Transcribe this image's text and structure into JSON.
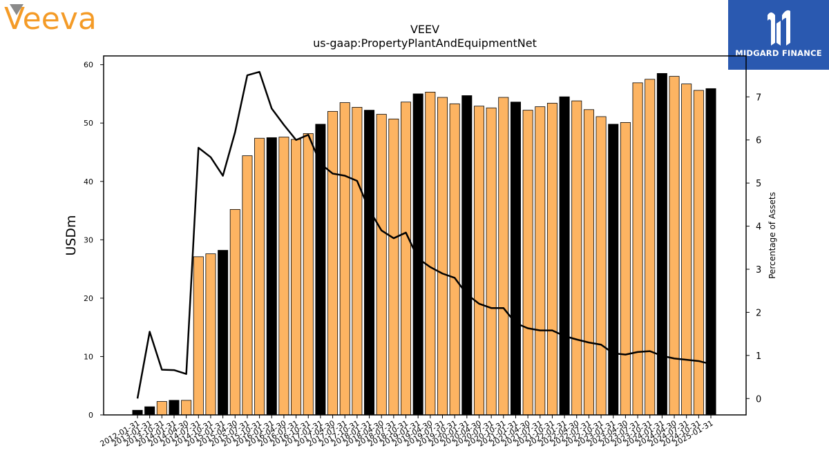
{
  "brand": {
    "left_logo_text": "Veeva",
    "left_logo_color": "#f49b27",
    "left_logo_accent": "#8a8a8a",
    "right_logo_text": "MIDGARD FINANCE",
    "right_logo_bg": "#2a59b0"
  },
  "chart_data": {
    "type": "bar",
    "title": "VEEV",
    "subtitle": "us-gaap:PropertyPlantAndEquipmentNet",
    "ylabel": "USDm",
    "y2label": "Percentage of Assets",
    "ylim": [
      0,
      61.5
    ],
    "y2lim": [
      -0.38,
      7.95
    ],
    "yticks": [
      0,
      10,
      20,
      30,
      40,
      50,
      60
    ],
    "y2ticks": [
      0,
      1,
      2,
      3,
      4,
      5,
      6,
      7
    ],
    "colors": {
      "bar_q4": "#000000",
      "bar_other": "#fdb462",
      "line": "#000000"
    },
    "categories": [
      "2012-01-31",
      "2013-01-31",
      "2013-10-31",
      "2014-01-31",
      "2014-04-30",
      "2014-07-31",
      "2014-10-31",
      "2015-01-31",
      "2015-04-30",
      "2015-07-31",
      "2015-10-31",
      "2016-01-31",
      "2016-04-30",
      "2016-07-31",
      "2016-10-31",
      "2017-01-31",
      "2017-04-30",
      "2017-07-31",
      "2017-10-31",
      "2018-01-31",
      "2018-04-30",
      "2018-07-31",
      "2018-10-31",
      "2019-01-31",
      "2019-04-30",
      "2019-07-31",
      "2019-10-31",
      "2020-01-31",
      "2020-04-30",
      "2020-07-31",
      "2020-10-31",
      "2021-01-31",
      "2021-04-30",
      "2021-07-31",
      "2021-10-31",
      "2022-01-31",
      "2022-04-30",
      "2022-07-31",
      "2022-10-31",
      "2023-01-31",
      "2023-04-30",
      "2023-07-31",
      "2023-10-31",
      "2024-01-31",
      "2024-04-30",
      "2024-07-31",
      "2024-10-31",
      "2025-01-31"
    ],
    "fiscal_year_end": [
      true,
      true,
      false,
      true,
      false,
      false,
      false,
      true,
      false,
      false,
      false,
      true,
      false,
      false,
      false,
      true,
      false,
      false,
      false,
      true,
      false,
      false,
      false,
      true,
      false,
      false,
      false,
      true,
      false,
      false,
      false,
      true,
      false,
      false,
      false,
      true,
      false,
      false,
      false,
      true,
      false,
      false,
      false,
      true,
      false,
      false,
      false,
      true
    ],
    "series": [
      {
        "type": "bar",
        "values": [
          0.8,
          1.4,
          2.3,
          2.5,
          2.5,
          27.1,
          27.6,
          28.2,
          35.2,
          44.4,
          47.4,
          47.5,
          47.6,
          47.2,
          48.2,
          49.8,
          52.0,
          53.5,
          52.7,
          52.2,
          51.5,
          50.7,
          53.6,
          55.0,
          55.3,
          54.4,
          53.3,
          54.7,
          52.9,
          52.6,
          54.4,
          53.6,
          52.2,
          52.8,
          53.4,
          54.5,
          53.8,
          52.3,
          51.1,
          49.8,
          50.1,
          56.9,
          57.5,
          58.5,
          58.0,
          56.7,
          55.6,
          55.9
        ]
      },
      {
        "type": "line",
        "axis": "right",
        "values": [
          0.0,
          1.55,
          0.67,
          0.66,
          0.57,
          5.82,
          5.6,
          5.17,
          6.18,
          7.5,
          7.58,
          6.73,
          6.35,
          6.0,
          6.12,
          5.45,
          5.22,
          5.17,
          5.05,
          4.38,
          3.9,
          3.72,
          3.85,
          3.25,
          3.05,
          2.9,
          2.8,
          2.42,
          2.2,
          2.1,
          2.1,
          1.75,
          1.63,
          1.58,
          1.58,
          1.45,
          1.37,
          1.3,
          1.25,
          1.05,
          1.02,
          1.08,
          1.1,
          0.99,
          0.93,
          0.9,
          0.87,
          0.8
        ]
      }
    ]
  }
}
